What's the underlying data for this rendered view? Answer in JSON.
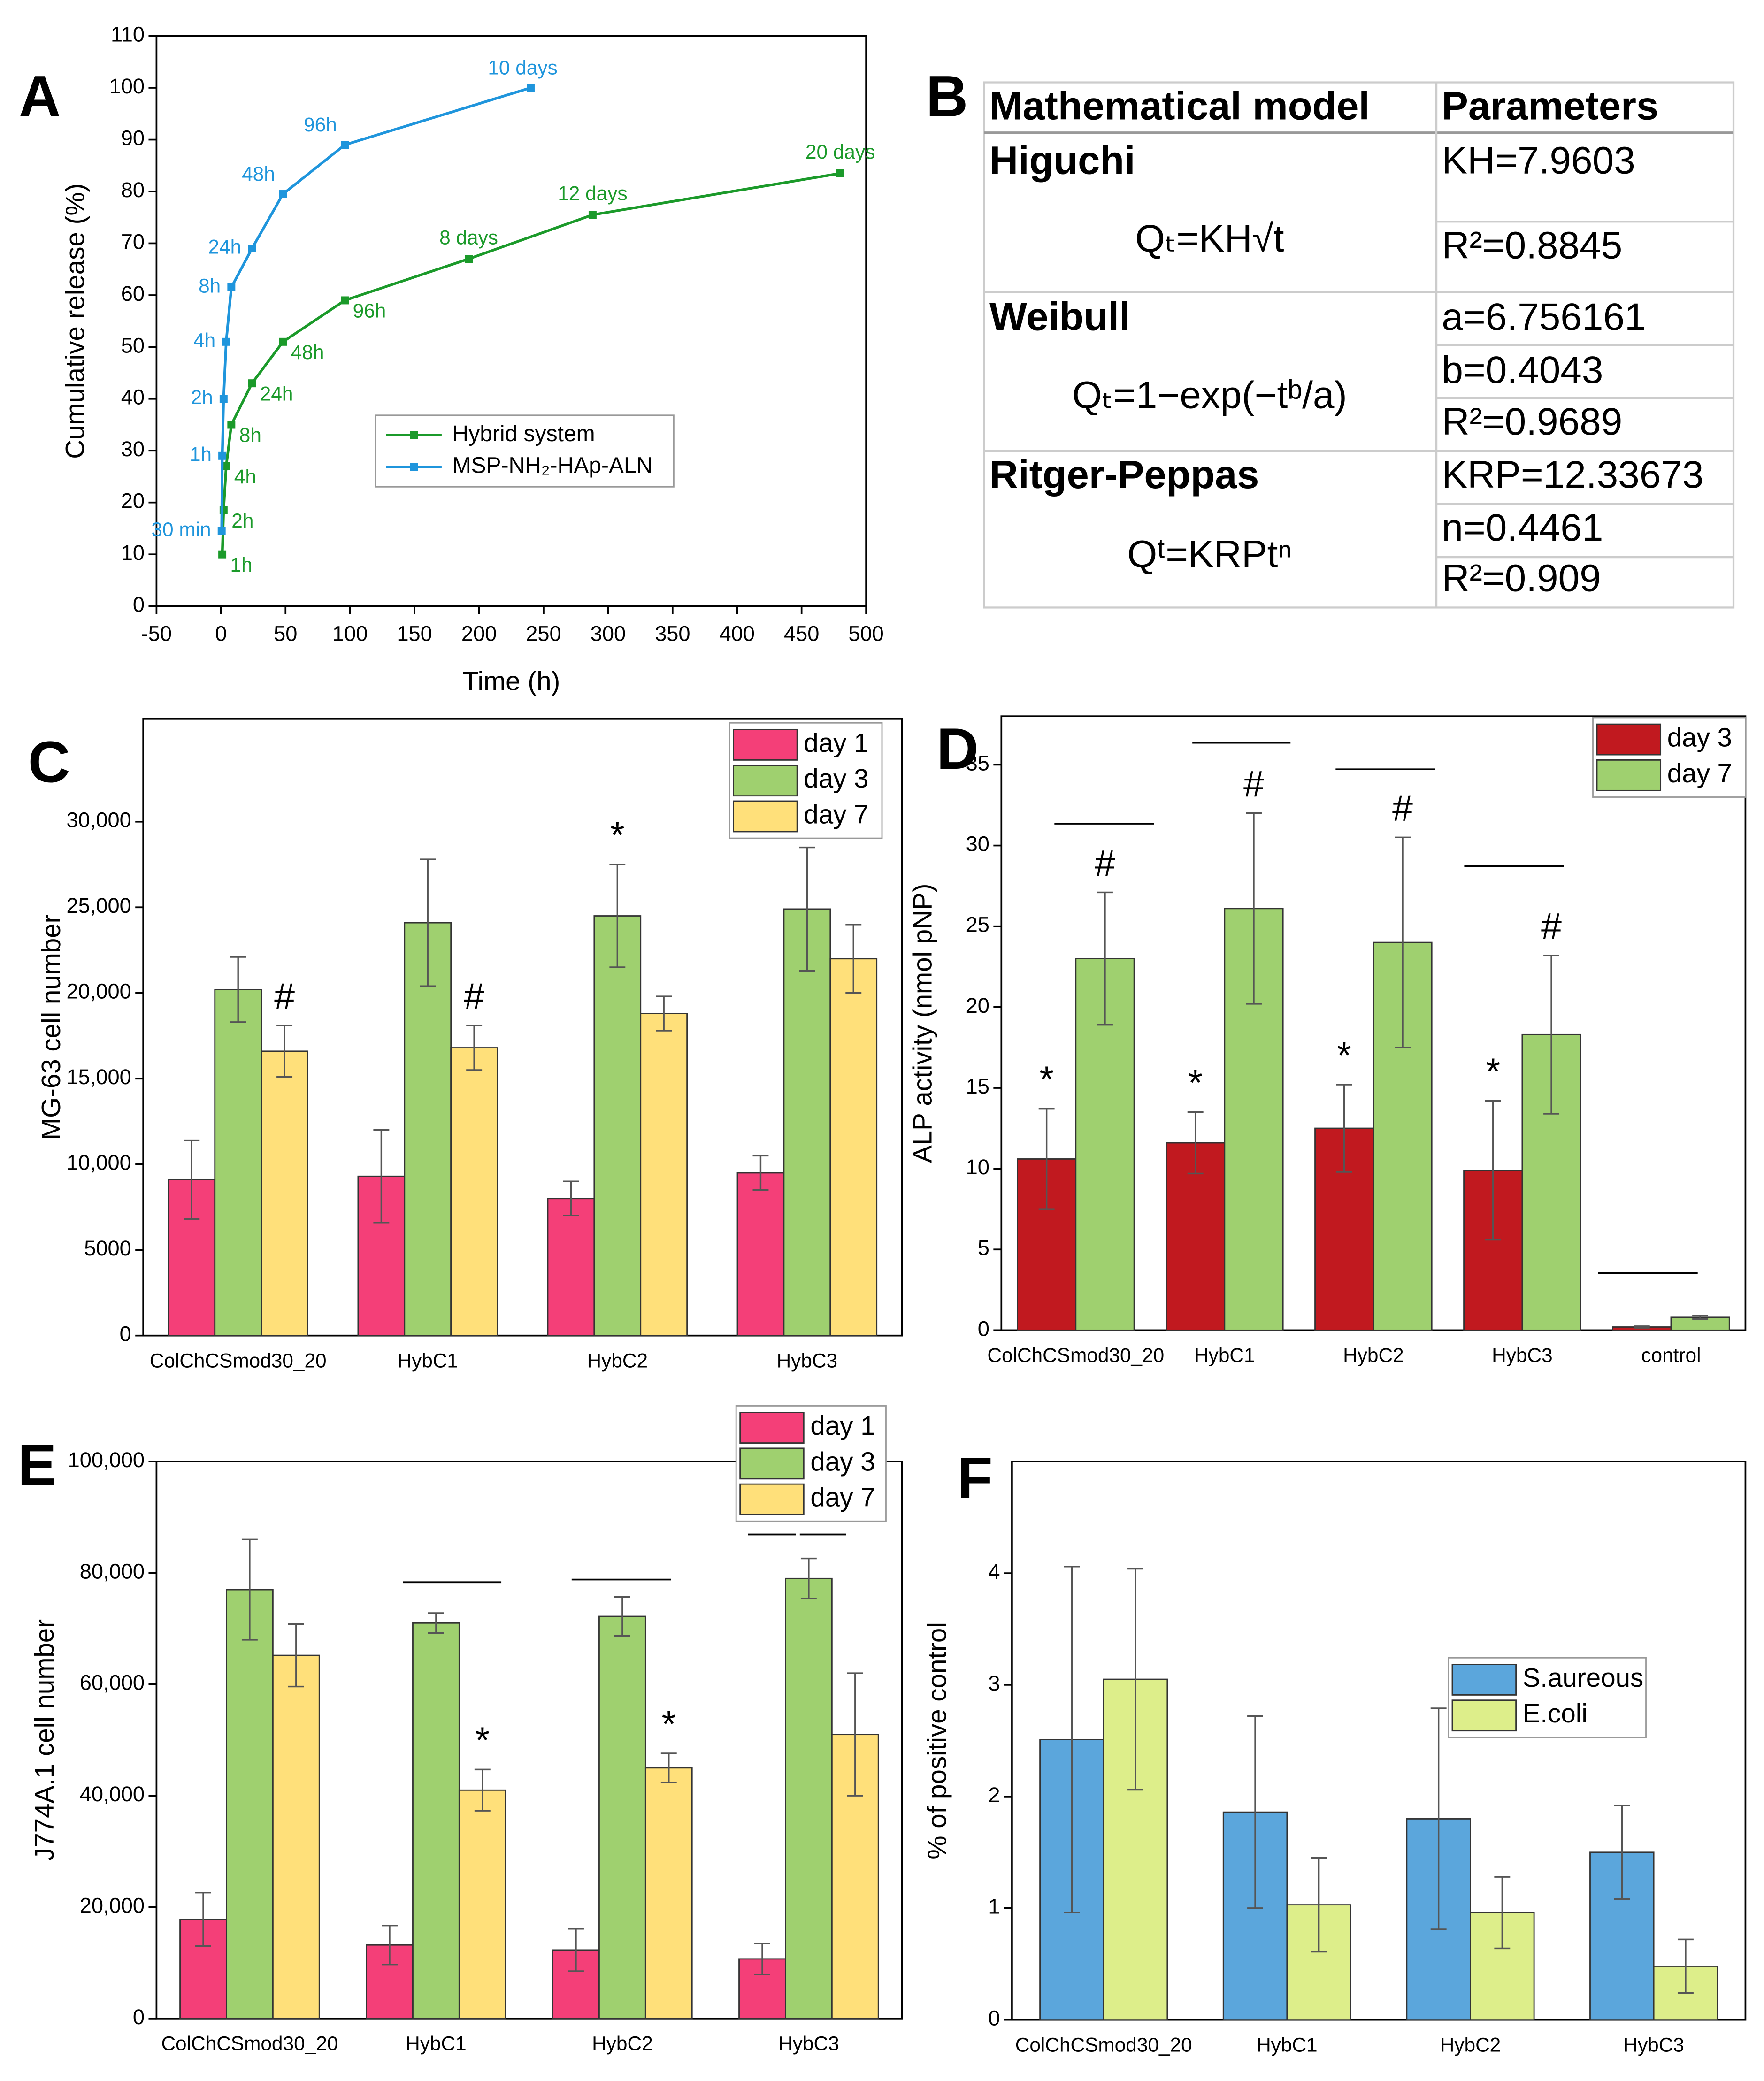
{
  "chart_data": [
    {
      "panel": "A",
      "type": "line",
      "xlabel": "Time (h)",
      "ylabel": "Cumulative release (%)",
      "xlim": [
        -50,
        500
      ],
      "xticks": [
        -50,
        0,
        50,
        100,
        150,
        200,
        250,
        300,
        350,
        400,
        450,
        500
      ],
      "ylim": [
        0,
        110
      ],
      "yticks": [
        0,
        10,
        20,
        30,
        40,
        50,
        60,
        70,
        80,
        90,
        100,
        110
      ],
      "series": [
        {
          "name": "Hybrid system",
          "color": "#1b9a2a",
          "x": [
            1,
            2,
            4,
            8,
            24,
            48,
            96,
            192,
            288,
            480
          ],
          "values": [
            10,
            18.5,
            27,
            35,
            43,
            51,
            59,
            67,
            75.5,
            83.5
          ],
          "point_labels": [
            "1h",
            "2h",
            "4h",
            "8h",
            "24h",
            "48h",
            "96h",
            "8 days",
            "12 days",
            "20 days"
          ]
        },
        {
          "name": "MSP-NH₂-HAp-ALN",
          "color": "#1f95dc",
          "x": [
            0.5,
            1,
            2,
            4,
            8,
            24,
            48,
            96,
            240
          ],
          "values": [
            14.5,
            29,
            40,
            51,
            61.5,
            69,
            79.5,
            89,
            100
          ],
          "point_labels": [
            "30 min",
            "1h",
            "2h",
            "4h",
            "8h",
            "24h",
            "48h",
            "96h",
            "10 days"
          ]
        }
      ]
    },
    {
      "panel": "C",
      "type": "bar",
      "ylabel": "MG-63 cell number",
      "categories": [
        "ColChCSmod30_20",
        "HybC1",
        "HybC2",
        "HybC3"
      ],
      "ylim": [
        0,
        36000
      ],
      "yticks": [
        0,
        5000,
        {
          "value": 10000,
          "label": "10,000"
        },
        {
          "value": 15000,
          "label": "15,000"
        },
        {
          "value": 20000,
          "label": "20,000"
        },
        {
          "value": 25000,
          "label": "25,000"
        },
        {
          "value": 30000,
          "label": "30,000"
        }
      ],
      "series": [
        {
          "name": "day 1",
          "color": "#f43f78",
          "values": [
            9100,
            9300,
            8000,
            9500
          ],
          "errors": [
            2300,
            2700,
            1000,
            1000
          ]
        },
        {
          "name": "day 3",
          "color": "#9fd06f",
          "values": [
            20200,
            24100,
            24500,
            24900
          ],
          "errors": [
            1900,
            3700,
            3000,
            3600
          ]
        },
        {
          "name": "day 7",
          "color": "#ffe07a",
          "values": [
            16600,
            16800,
            18800,
            22000
          ],
          "errors": [
            1500,
            1300,
            1000,
            2000
          ]
        }
      ],
      "annotations": [
        "#",
        "#",
        "*"
      ]
    },
    {
      "panel": "D",
      "type": "bar",
      "ylabel": "ALP activity (nmol pNP)",
      "categories": [
        "ColChCSmod30_20",
        "HybC1",
        "HybC2",
        "HybC3",
        "control"
      ],
      "ylim": [
        0,
        38
      ],
      "yticks": [
        0,
        5,
        10,
        15,
        20,
        25,
        30,
        35
      ],
      "series": [
        {
          "name": "day 3",
          "color": "#c1191f",
          "values": [
            10.6,
            11.6,
            12.5,
            9.9,
            0.2
          ],
          "errors": [
            3.1,
            1.9,
            2.7,
            4.3,
            0.05
          ]
        },
        {
          "name": "day 7",
          "color": "#9fd06f",
          "values": [
            23.0,
            26.1,
            24.0,
            18.3,
            0.8
          ],
          "errors": [
            4.1,
            5.9,
            6.5,
            4.9,
            0.1
          ]
        }
      ],
      "annotations": [
        "*",
        "*",
        "*",
        "*",
        "#",
        "#",
        "#",
        "#"
      ]
    },
    {
      "panel": "E",
      "type": "bar",
      "ylabel": "J774A.1 cell number",
      "categories": [
        "ColChCSmod30_20",
        "HybC1",
        "HybC2",
        "HybC3"
      ],
      "ylim": [
        0,
        100000
      ],
      "yticks": [
        0,
        {
          "value": 20000,
          "label": "20,000"
        },
        {
          "value": 40000,
          "label": "40,000"
        },
        {
          "value": 60000,
          "label": "60,000"
        },
        {
          "value": 80000,
          "label": "80,000"
        },
        {
          "value": 100000,
          "label": "100,000"
        }
      ],
      "series": [
        {
          "name": "day 1",
          "color": "#f43f78",
          "values": [
            17800,
            13200,
            12300,
            10700
          ],
          "errors": [
            4800,
            3500,
            3800,
            2800
          ]
        },
        {
          "name": "day 3",
          "color": "#9fd06f",
          "values": [
            77000,
            71000,
            72200,
            79000
          ],
          "errors": [
            9000,
            1800,
            3500,
            3600
          ]
        },
        {
          "name": "day 7",
          "color": "#ffe07a",
          "values": [
            65200,
            41000,
            45000,
            51000
          ],
          "errors": [
            5600,
            3700,
            2600,
            11000
          ]
        }
      ],
      "annotations": [
        "*",
        "*"
      ]
    },
    {
      "panel": "F",
      "type": "bar",
      "ylabel": "% of positive control",
      "categories": [
        "ColChCSmod30_20",
        "HybC1",
        "HybC2",
        "HybC3"
      ],
      "ylim": [
        0,
        5
      ],
      "yticks": [
        0,
        1,
        2,
        3,
        4
      ],
      "series": [
        {
          "name": "S.aureous",
          "color": "#5ba6dc",
          "values": [
            2.51,
            1.86,
            1.8,
            1.5
          ],
          "errors": [
            1.55,
            0.86,
            0.99,
            0.42
          ]
        },
        {
          "name": "E.coli",
          "color": "#ddee8a",
          "values": [
            3.05,
            1.03,
            0.96,
            0.48
          ],
          "errors": [
            0.99,
            0.42,
            0.32,
            0.24
          ]
        }
      ]
    }
  ],
  "table": {
    "panel": "B",
    "columns": [
      "Mathematical model",
      "Parameters"
    ],
    "rows": [
      {
        "model": "Higuchi",
        "equation": "Qₜ=KH√t",
        "parameters": [
          "KH=7.9603",
          "R²=0.8845"
        ]
      },
      {
        "model": "Weibull",
        "equation": "Qₜ=1−exp(−tᵇ/a)",
        "parameters": [
          "a=6.756161",
          "b=0.4043",
          "R²=0.9689"
        ]
      },
      {
        "model": "Ritger-Peppas",
        "equation": "Qᵗ=KRPtⁿ",
        "parameters": [
          "KRP=12.33673",
          "n=0.4461",
          "R²=0.909"
        ]
      }
    ]
  }
}
